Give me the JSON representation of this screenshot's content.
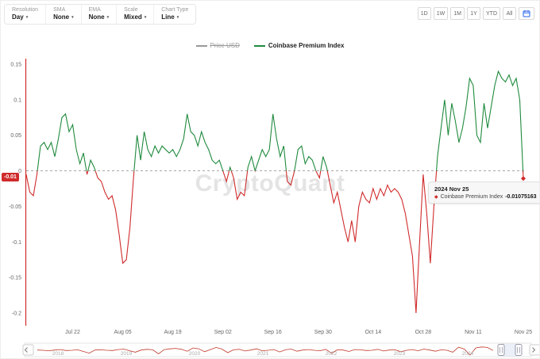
{
  "toolbar": {
    "controls": [
      {
        "label": "Resolution",
        "value": "Day"
      },
      {
        "label": "SMA",
        "value": "None"
      },
      {
        "label": "EMA",
        "value": "None"
      },
      {
        "label": "Scale",
        "value": "Mixed"
      },
      {
        "label": "Chart Type",
        "value": "Line"
      }
    ],
    "ranges": [
      "1D",
      "1W",
      "1M",
      "1Y",
      "YTD",
      "All"
    ]
  },
  "legend": {
    "items": [
      {
        "label": "Price USD",
        "disabled": true,
        "color": "#999999"
      },
      {
        "label": "Coinbase Premium Index",
        "disabled": false,
        "color": "#1f8a3d"
      }
    ]
  },
  "colors": {
    "positive": "#1f8a3d",
    "negative": "#d02b2b",
    "accent": "#2563eb",
    "zero_line": "#999999",
    "badge_bg": "#d02b2b"
  },
  "axis": {
    "current_value_label": "-0.01"
  },
  "tooltip": {
    "date": "2024 Nov 25",
    "series": "Coinbase Premium Index",
    "value": "-0.01075163"
  },
  "watermark": "CryptoQuant",
  "chart_data": {
    "type": "line",
    "series_name": "Coinbase Premium Index",
    "start_date": "2024-07-09",
    "interval": "day",
    "x_tick_labels": [
      "Jul 22",
      "Aug 05",
      "Aug 19",
      "Sep 02",
      "Sep 16",
      "Sep 30",
      "Oct 14",
      "Oct 28",
      "Nov 11",
      "Nov 25"
    ],
    "x_tick_indices": [
      13,
      27,
      41,
      55,
      69,
      83,
      97,
      111,
      125,
      139
    ],
    "y_ticks": [
      0.15,
      0.1,
      0.05,
      0,
      -0.05,
      -0.1,
      -0.15,
      -0.2
    ],
    "ylim": [
      -0.2,
      0.15
    ],
    "zero_line": 0,
    "positive_color": "#1f8a3d",
    "negative_color": "#d02b2b",
    "grid": false,
    "legend_position": "top-center",
    "last_value": -0.01075163,
    "values": [
      -0.005,
      -0.03,
      -0.035,
      -0.005,
      0.035,
      0.04,
      0.03,
      0.04,
      0.02,
      0.045,
      0.075,
      0.08,
      0.055,
      0.065,
      0.03,
      0.01,
      0.025,
      -0.005,
      0.015,
      0.005,
      -0.01,
      -0.015,
      -0.03,
      -0.04,
      -0.035,
      -0.055,
      -0.09,
      -0.13,
      -0.125,
      -0.08,
      -0.01,
      0.05,
      0.015,
      0.055,
      0.03,
      0.02,
      0.035,
      0.025,
      0.035,
      0.03,
      0.025,
      0.03,
      0.02,
      0.03,
      0.045,
      0.08,
      0.055,
      0.05,
      0.035,
      0.055,
      0.04,
      0.03,
      0.015,
      0.01,
      0.015,
      0,
      -0.015,
      0.005,
      -0.01,
      -0.04,
      -0.03,
      -0.035,
      0.005,
      0.02,
      0,
      0.015,
      0.03,
      0.02,
      0.03,
      0.08,
      0.045,
      0.02,
      0.035,
      -0.015,
      -0.02,
      0,
      0.03,
      0.035,
      0.01,
      0.02,
      0.015,
      0,
      -0.01,
      0.02,
      0.005,
      -0.02,
      -0.045,
      -0.03,
      -0.055,
      -0.08,
      -0.1,
      -0.07,
      -0.1,
      -0.05,
      -0.03,
      -0.04,
      -0.045,
      -0.025,
      -0.04,
      -0.025,
      -0.035,
      -0.02,
      -0.03,
      -0.025,
      -0.03,
      -0.04,
      -0.06,
      -0.09,
      -0.12,
      -0.2,
      -0.1,
      -0.005,
      -0.06,
      -0.13,
      -0.05,
      0.02,
      0.06,
      0.1,
      0.05,
      0.095,
      0.07,
      0.04,
      0.06,
      0.09,
      0.13,
      0.12,
      0.05,
      0.04,
      0.095,
      0.06,
      0.09,
      0.12,
      0.14,
      0.13,
      0.125,
      0.135,
      0.12,
      0.13,
      0.1,
      -0.01075163
    ]
  },
  "navigator": {
    "years": [
      "2018",
      "2019",
      "2020",
      "2021",
      "2022",
      "2023",
      "2024"
    ],
    "values": [
      0.01,
      0,
      -0.02,
      0.01,
      0.03,
      -0.01,
      0,
      0.02,
      -0.05,
      -0.12,
      0.01,
      0.02,
      0,
      -0.01,
      0.03,
      0.05,
      -0.02,
      -0.08,
      0.01,
      0.04,
      0.02,
      -0.15,
      0.03,
      0.06,
      0.08,
      0.04,
      -0.04,
      0.1,
      0.06,
      -0.06,
      0.03,
      0.12,
      0.05,
      -0.1,
      0.02,
      0.04,
      -0.03,
      0.01,
      0.06,
      -0.02,
      0,
      0.03,
      -0.07,
      0.02,
      0.05,
      -0.04,
      0.01,
      0.03,
      0,
      -0.02,
      0.04,
      -0.12,
      0.02,
      0.01,
      -0.05,
      0.03,
      0.02,
      -0.01,
      0,
      0.04,
      -0.03,
      0.01,
      0.02,
      -0.06,
      0,
      0.03,
      -0.02,
      0.05,
      0.01,
      -0.04,
      0.02,
      0,
      -0.08,
      0.13,
      0.05,
      -0.2,
      0.1,
      0.14,
      0.12,
      -0.01
    ]
  }
}
